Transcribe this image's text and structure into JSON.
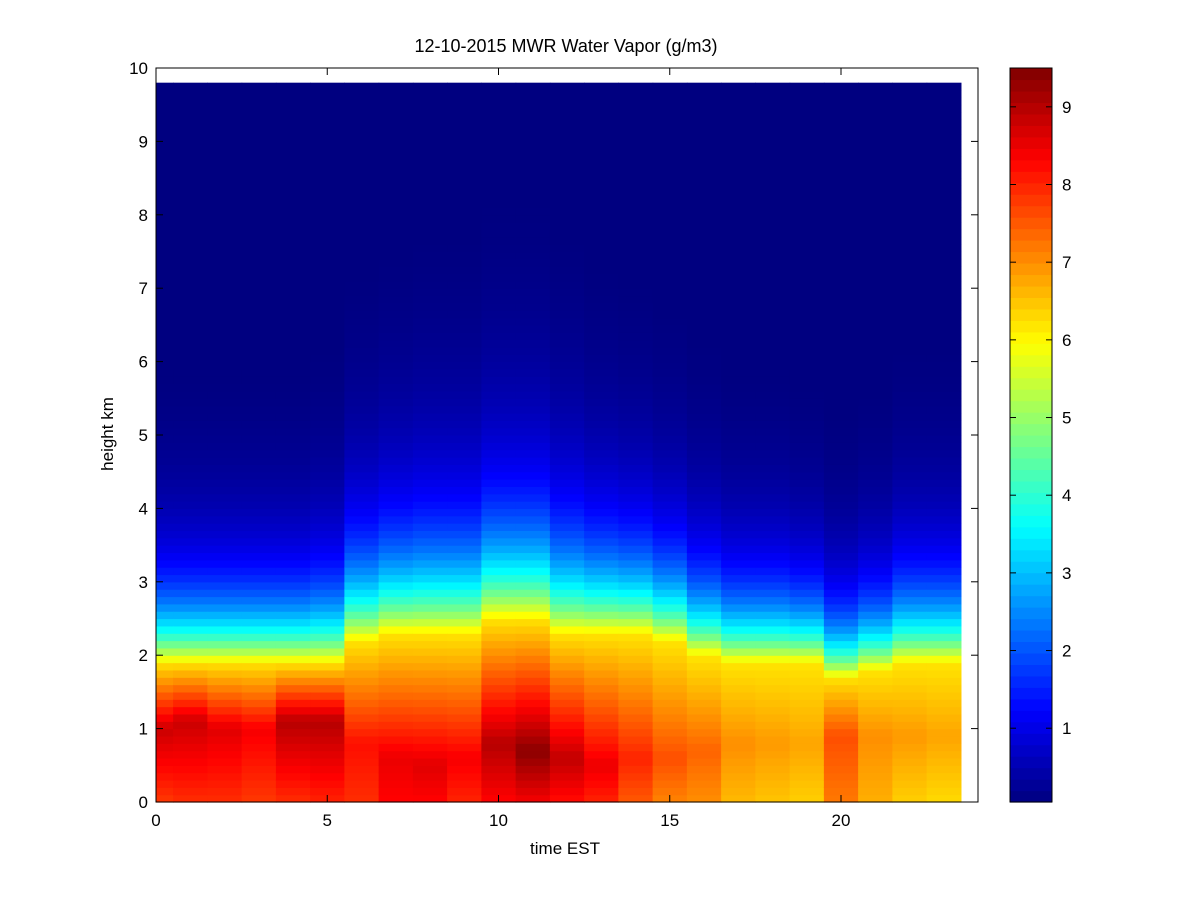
{
  "chart_data": {
    "type": "heatmap",
    "title": "12-10-2015 MWR Water Vapor (g/m3)",
    "xlabel": "time EST",
    "ylabel": "height km",
    "xlim": [
      0,
      24
    ],
    "ylim": [
      0,
      10
    ],
    "x_ticks": [
      0,
      5,
      10,
      15,
      20
    ],
    "y_ticks": [
      0,
      1,
      2,
      3,
      4,
      5,
      6,
      7,
      8,
      9,
      10
    ],
    "colorbar": {
      "colormap": "jet",
      "range": [
        0.05,
        9.5
      ],
      "ticks": [
        1,
        2,
        3,
        4,
        5,
        6,
        7,
        8,
        9
      ]
    },
    "hours": [
      0,
      1,
      2,
      3,
      4,
      5,
      6,
      7,
      8,
      9,
      10,
      11,
      12,
      13,
      14,
      15,
      16,
      17,
      18,
      19,
      20,
      21,
      22,
      23
    ],
    "data_extent": {
      "x_max": 23.5,
      "y_max": 9.75
    },
    "profiles": {
      "description_keys": [
        "surface",
        "peak",
        "peak_height_km",
        "top_of_moist_layer_km"
      ],
      "surface": [
        7.8,
        7.9,
        7.9,
        7.8,
        7.9,
        8.0,
        7.9,
        8.3,
        8.3,
        8.0,
        8.3,
        8.4,
        8.2,
        8.0,
        7.5,
        7.1,
        7.0,
        6.6,
        6.5,
        6.4,
        7.2,
        6.7,
        6.4,
        6.3
      ],
      "peak": [
        8.8,
        8.8,
        8.6,
        8.4,
        9.0,
        9.0,
        8.2,
        8.5,
        8.6,
        8.4,
        9.0,
        9.4,
        8.9,
        8.5,
        8.0,
        7.6,
        7.4,
        7.0,
        6.9,
        6.8,
        7.6,
        7.0,
        6.9,
        6.8
      ],
      "peak_height_km": [
        1.0,
        1.1,
        1.0,
        1.0,
        1.1,
        1.1,
        0.8,
        0.6,
        0.5,
        0.6,
        0.8,
        0.7,
        0.6,
        0.5,
        0.6,
        0.6,
        0.7,
        0.8,
        0.8,
        0.8,
        0.9,
        0.9,
        0.9,
        0.9
      ],
      "moist_top_km": [
        1.9,
        1.9,
        1.9,
        1.9,
        1.9,
        1.9,
        2.2,
        2.3,
        2.3,
        2.3,
        2.5,
        2.5,
        2.3,
        2.3,
        2.3,
        2.2,
        2.0,
        1.9,
        1.9,
        1.9,
        1.7,
        1.8,
        1.9,
        1.9
      ],
      "scale_height_km": [
        0.85,
        0.85,
        0.85,
        0.85,
        0.85,
        0.9,
        1.05,
        1.1,
        1.15,
        1.15,
        1.2,
        1.2,
        1.15,
        1.05,
        1.0,
        0.95,
        0.9,
        0.85,
        0.85,
        0.8,
        0.75,
        0.8,
        0.9,
        0.9
      ]
    }
  }
}
